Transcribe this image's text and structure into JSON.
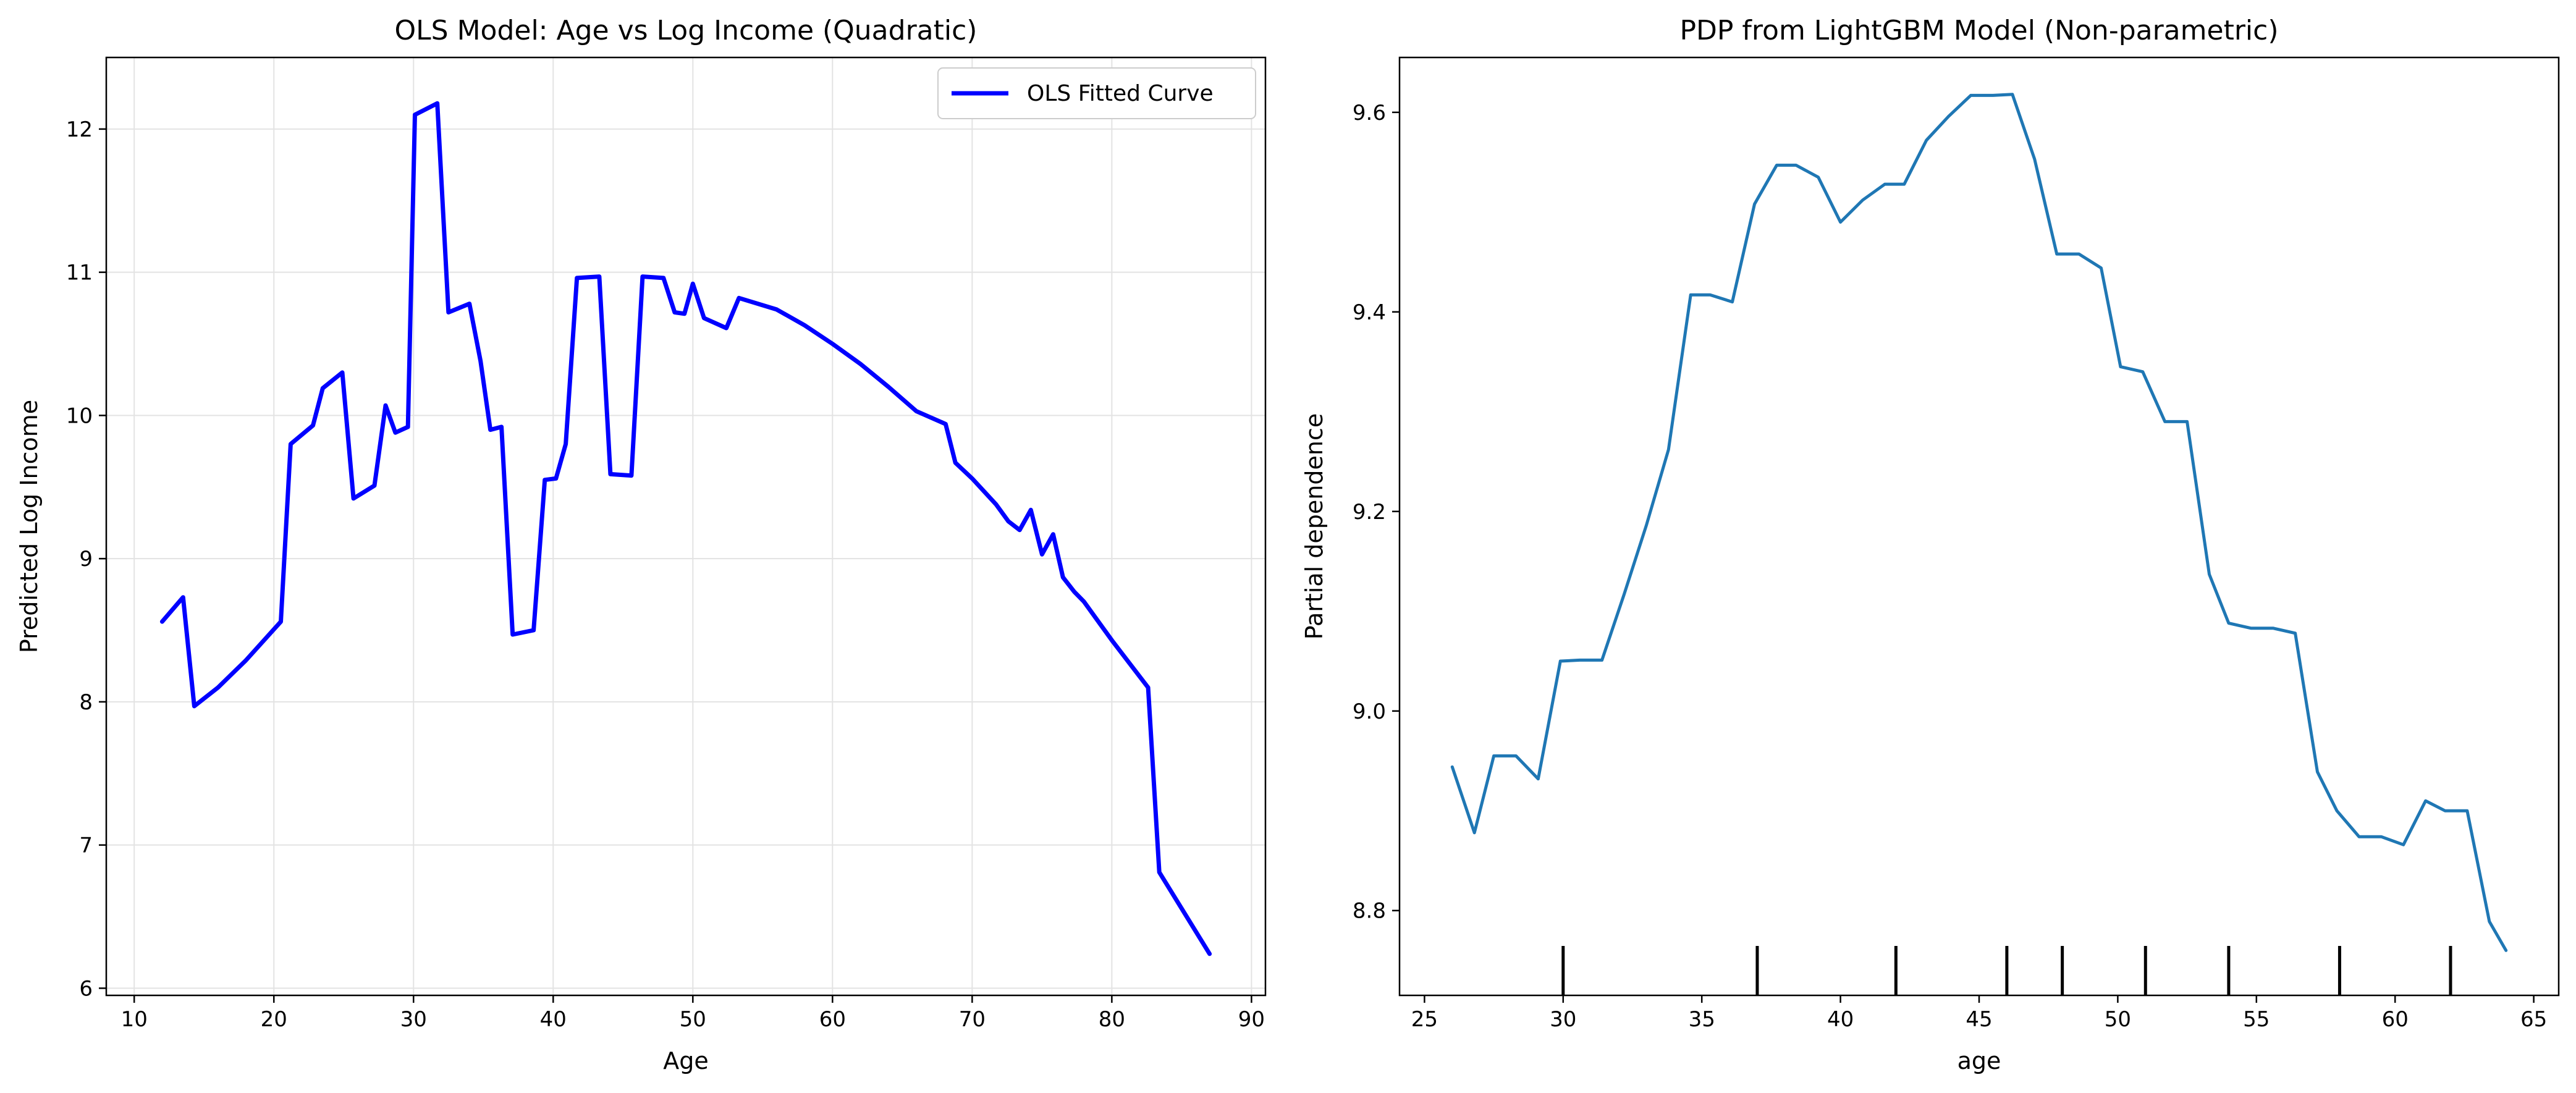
{
  "chart_data": [
    {
      "type": "line",
      "title": "OLS Model: Age vs Log Income (Quadratic)",
      "xlabel": "Age",
      "ylabel": "Predicted Log Income",
      "xlim": [
        8,
        91
      ],
      "ylim": [
        5.95,
        12.5
      ],
      "xticks": [
        10,
        20,
        30,
        40,
        50,
        60,
        70,
        80,
        90
      ],
      "yticks": [
        6,
        7,
        8,
        9,
        10,
        11,
        12
      ],
      "grid": true,
      "legend": {
        "position": "top-right",
        "entries": [
          "OLS Fitted Curve"
        ]
      },
      "series": [
        {
          "name": "OLS Fitted Curve",
          "color": "#0000ff",
          "x": [
            12,
            13.5,
            14.3,
            16,
            18,
            20.5,
            21.2,
            22.8,
            23.5,
            24.9,
            25.7,
            27.2,
            28,
            28.7,
            29.6,
            30.1,
            31.7,
            32.5,
            34,
            34.8,
            35.5,
            36.3,
            37.1,
            38.6,
            39.4,
            40.2,
            40.9,
            41.7,
            43.3,
            44.1,
            45.6,
            46.4,
            47.9,
            48.7,
            49.4,
            50,
            50.8,
            52.4,
            53.3,
            56,
            58,
            60,
            62,
            64,
            66,
            68.1,
            68.8,
            70,
            71.7,
            72.6,
            73.4,
            74.2,
            75,
            75.8,
            76.5,
            77.3,
            78,
            80,
            82.6,
            83.4,
            87
          ],
          "y": [
            8.56,
            8.73,
            7.97,
            8.1,
            8.29,
            8.56,
            9.8,
            9.93,
            10.19,
            10.3,
            9.42,
            9.51,
            10.07,
            9.88,
            9.92,
            12.1,
            12.18,
            10.72,
            10.78,
            10.38,
            9.9,
            9.92,
            8.47,
            8.5,
            9.55,
            9.56,
            9.8,
            10.96,
            10.97,
            9.59,
            9.58,
            10.97,
            10.96,
            10.72,
            10.71,
            10.92,
            10.68,
            10.61,
            10.82,
            10.74,
            10.63,
            10.5,
            10.36,
            10.2,
            10.03,
            9.94,
            9.67,
            9.56,
            9.38,
            9.26,
            9.2,
            9.34,
            9.03,
            9.17,
            8.87,
            8.77,
            8.7,
            8.43,
            8.1,
            6.81,
            6.24
          ]
        }
      ]
    },
    {
      "type": "line",
      "title": "PDP from LightGBM Model (Non-parametric)",
      "xlabel": "age",
      "ylabel": "Partial dependence",
      "xlim": [
        24.1,
        65.9
      ],
      "ylim": [
        8.715,
        9.655
      ],
      "xticks": [
        25,
        30,
        35,
        40,
        45,
        50,
        55,
        60,
        65
      ],
      "yticks": [
        8.8,
        9.0,
        9.2,
        9.4,
        9.6
      ],
      "ytick_labels": [
        "8.8",
        "9.0",
        "9.2",
        "9.4",
        "9.6"
      ],
      "grid": false,
      "rug": [
        30,
        37,
        42,
        46,
        48,
        51,
        54,
        58,
        62
      ],
      "rug_color": "#000000",
      "series": [
        {
          "color": "#1f77b4",
          "x": [
            26,
            26.8,
            27.5,
            28.3,
            29.1,
            29.9,
            30.6,
            31.4,
            32.2,
            33,
            33.8,
            34.6,
            35.3,
            36.1,
            36.9,
            37.7,
            38.4,
            39.2,
            40,
            40.8,
            41.6,
            42.3,
            43.1,
            43.9,
            44.7,
            45.5,
            46.2,
            47,
            47.8,
            48.6,
            49.4,
            50.1,
            50.9,
            51.7,
            52.5,
            53.3,
            54,
            54.8,
            55.6,
            56.4,
            57.2,
            57.9,
            58.7,
            59.5,
            60.3,
            61.1,
            61.8,
            62.6,
            63.4,
            64
          ],
          "y": [
            8.944,
            8.878,
            8.955,
            8.955,
            8.932,
            9.05,
            9.051,
            9.051,
            9.117,
            9.186,
            9.262,
            9.417,
            9.417,
            9.41,
            9.508,
            9.547,
            9.547,
            9.535,
            9.49,
            9.512,
            9.528,
            9.528,
            9.572,
            9.596,
            9.617,
            9.617,
            9.618,
            9.553,
            9.458,
            9.458,
            9.444,
            9.345,
            9.34,
            9.29,
            9.29,
            9.137,
            9.088,
            9.083,
            9.083,
            9.078,
            8.939,
            8.9,
            8.874,
            8.874,
            8.866,
            8.91,
            8.9,
            8.9,
            8.789,
            8.76
          ]
        }
      ]
    }
  ]
}
